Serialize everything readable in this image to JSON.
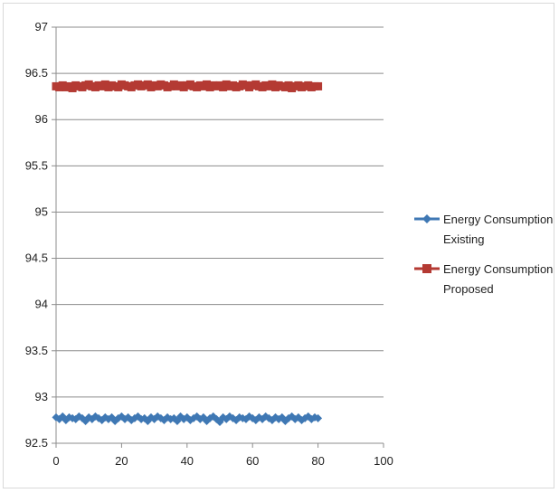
{
  "chart_data": {
    "type": "line",
    "title": "",
    "xlabel": "",
    "ylabel": "",
    "xlim": [
      0,
      100
    ],
    "ylim": [
      92.5,
      97
    ],
    "x_ticks": [
      0,
      20,
      40,
      60,
      80,
      100
    ],
    "y_ticks": [
      92.5,
      93,
      93.5,
      94,
      94.5,
      95,
      95.5,
      96,
      96.5,
      97
    ],
    "x_tick_labels": [
      "0",
      "20",
      "40",
      "60",
      "80",
      "100"
    ],
    "y_tick_labels": [
      "92.5",
      "93",
      "93.5",
      "94",
      "94.5",
      "95",
      "95.5",
      "96",
      "96.5",
      "97"
    ],
    "grid": "horizontal",
    "legend_position": "right",
    "series": [
      {
        "name_lines": [
          "Energy Consumption",
          "Existing"
        ],
        "color": "#3f78b4",
        "marker": "diamond",
        "x": [
          0,
          1,
          2,
          3,
          4,
          5,
          6,
          7,
          8,
          9,
          10,
          11,
          12,
          13,
          14,
          15,
          16,
          17,
          18,
          19,
          20,
          21,
          22,
          23,
          24,
          25,
          26,
          27,
          28,
          29,
          30,
          31,
          32,
          33,
          34,
          35,
          36,
          37,
          38,
          39,
          40,
          41,
          42,
          43,
          44,
          45,
          46,
          47,
          48,
          49,
          50,
          51,
          52,
          53,
          54,
          55,
          56,
          57,
          58,
          59,
          60,
          61,
          62,
          63,
          64,
          65,
          66,
          67,
          68,
          69,
          70,
          71,
          72,
          73,
          74,
          75,
          76,
          77,
          78,
          79,
          80
        ],
        "y": [
          92.78,
          92.76,
          92.79,
          92.75,
          92.78,
          92.77,
          92.76,
          92.79,
          92.77,
          92.74,
          92.78,
          92.76,
          92.79,
          92.77,
          92.75,
          92.78,
          92.76,
          92.78,
          92.74,
          92.77,
          92.79,
          92.76,
          92.78,
          92.75,
          92.77,
          92.79,
          92.76,
          92.77,
          92.74,
          92.78,
          92.76,
          92.79,
          92.77,
          92.75,
          92.78,
          92.76,
          92.77,
          92.74,
          92.79,
          92.76,
          92.78,
          92.75,
          92.77,
          92.79,
          92.76,
          92.78,
          92.74,
          92.77,
          92.79,
          92.76,
          92.73,
          92.78,
          92.76,
          92.79,
          92.77,
          92.75,
          92.78,
          92.77,
          92.76,
          92.79,
          92.77,
          92.75,
          92.78,
          92.76,
          92.79,
          92.77,
          92.75,
          92.78,
          92.76,
          92.78,
          92.74,
          92.77,
          92.79,
          92.76,
          92.78,
          92.75,
          92.77,
          92.79,
          92.76,
          92.78,
          92.77
        ]
      },
      {
        "name_lines": [
          "Energy Consumption",
          "Proposed"
        ],
        "color": "#b43a33",
        "marker": "square",
        "x": [
          0,
          1,
          2,
          3,
          4,
          5,
          6,
          7,
          8,
          9,
          10,
          11,
          12,
          13,
          14,
          15,
          16,
          17,
          18,
          19,
          20,
          21,
          22,
          23,
          24,
          25,
          26,
          27,
          28,
          29,
          30,
          31,
          32,
          33,
          34,
          35,
          36,
          37,
          38,
          39,
          40,
          41,
          42,
          43,
          44,
          45,
          46,
          47,
          48,
          49,
          50,
          51,
          52,
          53,
          54,
          55,
          56,
          57,
          58,
          59,
          60,
          61,
          62,
          63,
          64,
          65,
          66,
          67,
          68,
          69,
          70,
          71,
          72,
          73,
          74,
          75,
          76,
          77,
          78,
          79,
          80
        ],
        "y": [
          96.36,
          96.35,
          96.37,
          96.35,
          96.36,
          96.34,
          96.37,
          96.36,
          96.35,
          96.37,
          96.38,
          96.36,
          96.35,
          96.37,
          96.36,
          96.38,
          96.35,
          96.37,
          96.36,
          96.35,
          96.38,
          96.37,
          96.36,
          96.35,
          96.37,
          96.38,
          96.36,
          96.37,
          96.38,
          96.35,
          96.37,
          96.36,
          96.38,
          96.37,
          96.35,
          96.36,
          96.38,
          96.36,
          96.37,
          96.35,
          96.37,
          96.38,
          96.36,
          96.35,
          96.37,
          96.36,
          96.38,
          96.35,
          96.37,
          96.36,
          96.37,
          96.35,
          96.38,
          96.36,
          96.37,
          96.35,
          96.36,
          96.38,
          96.37,
          96.35,
          96.37,
          96.38,
          96.36,
          96.35,
          96.37,
          96.36,
          96.38,
          96.35,
          96.37,
          96.36,
          96.35,
          96.37,
          96.34,
          96.36,
          96.37,
          96.35,
          96.36,
          96.37,
          96.35,
          96.36,
          96.36
        ]
      }
    ]
  }
}
